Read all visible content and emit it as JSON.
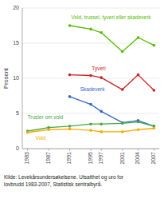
{
  "chart_data": {
    "type": "line",
    "ylabel": "Prosent",
    "x": [
      1983,
      1987,
      1991,
      1995,
      1997,
      2001,
      2004,
      2007
    ],
    "xlim": [
      1982,
      2008
    ],
    "xticks": [
      1983,
      1987,
      1991,
      1995,
      1997,
      2001,
      2004,
      2007
    ],
    "ylim": [
      0,
      20
    ],
    "yticks": [
      0,
      5,
      10,
      15,
      20
    ],
    "grid": true,
    "marker": "circle",
    "series": [
      {
        "color": "#55bb00",
        "values": [
          null,
          null,
          17.5,
          17.0,
          16.5,
          13.8,
          15.8,
          14.7
        ]
      },
      {
        "color": "#cc2222",
        "values": [
          null,
          null,
          10.5,
          10.4,
          10.1,
          8.4,
          10.5,
          8.3
        ]
      },
      {
        "color": "#3366cc",
        "values": [
          null,
          null,
          7.4,
          6.3,
          5.3,
          3.7,
          4.0,
          3.2
        ]
      },
      {
        "color": "#44aa44",
        "values": [
          2.5,
          3.0,
          3.2,
          3.5,
          3.5,
          3.6,
          3.8,
          3.2
        ]
      },
      {
        "color": "#ffaa00",
        "values": [
          2.3,
          2.7,
          2.8,
          2.6,
          2.4,
          2.4,
          2.7,
          2.9
        ]
      }
    ],
    "annotations": [
      {
        "text": "Vold, trussel, tyveri eller skadeverk",
        "x": 1991.3,
        "y": 18.6,
        "color": "#55bb00"
      },
      {
        "text": "Tyveri",
        "x": 1995.2,
        "y": 11.3,
        "color": "#cc2222"
      },
      {
        "text": "Skadeverk",
        "x": 1993.0,
        "y": 8.4,
        "color": "#3366cc"
      },
      {
        "text": "Trusler om vold",
        "x": 1983.0,
        "y": 4.4,
        "color": "#44aa44"
      },
      {
        "text": "Vold",
        "x": 1984.5,
        "y": 1.5,
        "color": "#ffaa00"
      }
    ],
    "source": [
      "Kilde: Levekårsundersøkelsene. Utsatthet og uro for",
      "lovbrudd 1983-2007, Statistisk sentralbyrå."
    ]
  }
}
